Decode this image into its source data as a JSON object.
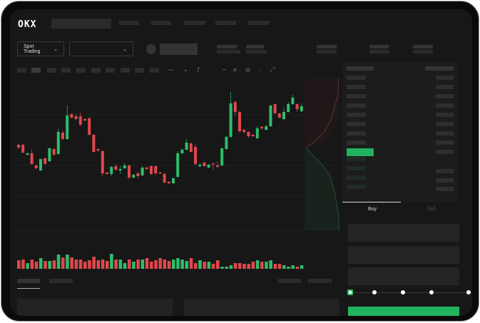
{
  "header": {
    "logo": "OKX"
  },
  "toolbar": {
    "market_select": "Spot Trading",
    "chevron": "⌄"
  },
  "trade": {
    "buy_tab": "Buy",
    "sell_tab": "Sell",
    "leverage_steps": 5,
    "leverage_selected": 0
  },
  "colors": {
    "up": "#2ebd6b",
    "down": "#e0474c",
    "background": "#171717",
    "accent": "#22b35e"
  },
  "chart_data": {
    "type": "candlestick",
    "candles": [
      [
        97,
        93,
        99,
        91
      ],
      [
        97,
        86,
        98,
        85
      ],
      [
        83,
        85,
        86,
        82
      ],
      [
        85,
        70,
        90,
        69
      ],
      [
        68,
        64,
        69,
        63
      ],
      [
        61,
        77,
        62,
        60
      ],
      [
        78,
        70,
        79,
        69
      ],
      [
        74,
        92,
        93,
        73
      ],
      [
        91,
        83,
        92,
        82
      ],
      [
        84,
        115,
        119,
        83
      ],
      [
        114,
        105,
        117,
        104
      ],
      [
        105,
        138,
        152,
        104
      ],
      [
        140,
        135,
        141,
        134
      ],
      [
        137,
        133,
        140,
        132
      ],
      [
        137,
        125,
        142,
        123
      ],
      [
        133,
        131,
        134,
        130
      ],
      [
        134,
        111,
        136,
        110
      ],
      [
        111,
        87,
        112,
        86
      ],
      [
        91,
        89,
        92,
        87
      ],
      [
        88,
        57,
        89,
        53
      ],
      [
        58,
        56,
        59,
        55
      ],
      [
        56,
        66,
        67,
        53
      ],
      [
        67,
        62,
        70,
        60
      ],
      [
        61,
        63,
        67,
        56
      ],
      [
        64,
        68,
        71,
        63
      ],
      [
        68,
        51,
        69,
        48
      ],
      [
        51,
        55,
        56,
        50
      ],
      [
        57,
        53,
        59,
        50
      ],
      [
        54,
        65,
        67,
        53
      ],
      [
        65,
        63,
        66,
        62
      ],
      [
        67,
        56,
        68,
        54
      ],
      [
        67,
        57,
        68,
        54
      ],
      [
        58,
        57,
        59,
        56
      ],
      [
        56,
        44,
        58,
        43
      ],
      [
        45,
        43,
        46,
        42
      ],
      [
        43,
        50,
        51,
        42
      ],
      [
        52,
        85,
        88,
        51
      ],
      [
        85,
        90,
        92,
        84
      ],
      [
        90,
        100,
        105,
        89
      ],
      [
        99,
        87,
        100,
        86
      ],
      [
        94,
        70,
        98,
        68
      ],
      [
        67,
        69,
        71,
        65
      ],
      [
        72,
        67,
        73,
        66
      ],
      [
        65,
        69,
        70,
        64
      ],
      [
        71,
        70,
        71,
        61
      ],
      [
        68,
        66,
        74,
        65
      ],
      [
        68,
        92,
        93,
        67
      ],
      [
        91,
        108,
        110,
        90
      ],
      [
        108,
        155,
        171,
        107
      ],
      [
        157,
        143,
        159,
        138
      ],
      [
        143,
        116,
        145,
        114
      ],
      [
        118,
        115,
        119,
        113
      ],
      [
        115,
        109,
        116,
        107
      ],
      [
        111,
        109,
        112,
        108
      ],
      [
        106,
        120,
        123,
        105
      ],
      [
        122,
        120,
        124,
        118
      ],
      [
        118,
        123,
        125,
        117
      ],
      [
        123,
        152,
        153,
        122
      ],
      [
        154,
        141,
        155,
        140
      ],
      [
        141,
        135,
        142,
        134
      ],
      [
        133,
        143,
        149,
        132
      ],
      [
        143,
        154,
        157,
        142
      ],
      [
        154,
        163,
        167,
        153
      ],
      [
        154,
        147,
        155,
        143
      ],
      [
        144,
        151,
        155,
        143
      ]
    ],
    "volume": [
      12,
      13,
      8,
      13,
      10,
      15,
      11,
      11,
      12,
      20,
      16,
      20,
      16,
      13,
      13,
      10,
      12,
      17,
      12,
      13,
      11,
      21,
      13,
      13,
      8,
      13,
      10,
      13,
      13,
      15,
      10,
      12,
      15,
      13,
      11,
      13,
      15,
      13,
      11,
      15,
      8,
      12,
      10,
      10,
      7,
      12,
      3,
      3,
      5,
      8,
      8,
      7,
      7,
      10,
      12,
      10,
      10,
      12,
      7,
      7,
      5,
      3,
      5,
      3,
      5
    ]
  }
}
